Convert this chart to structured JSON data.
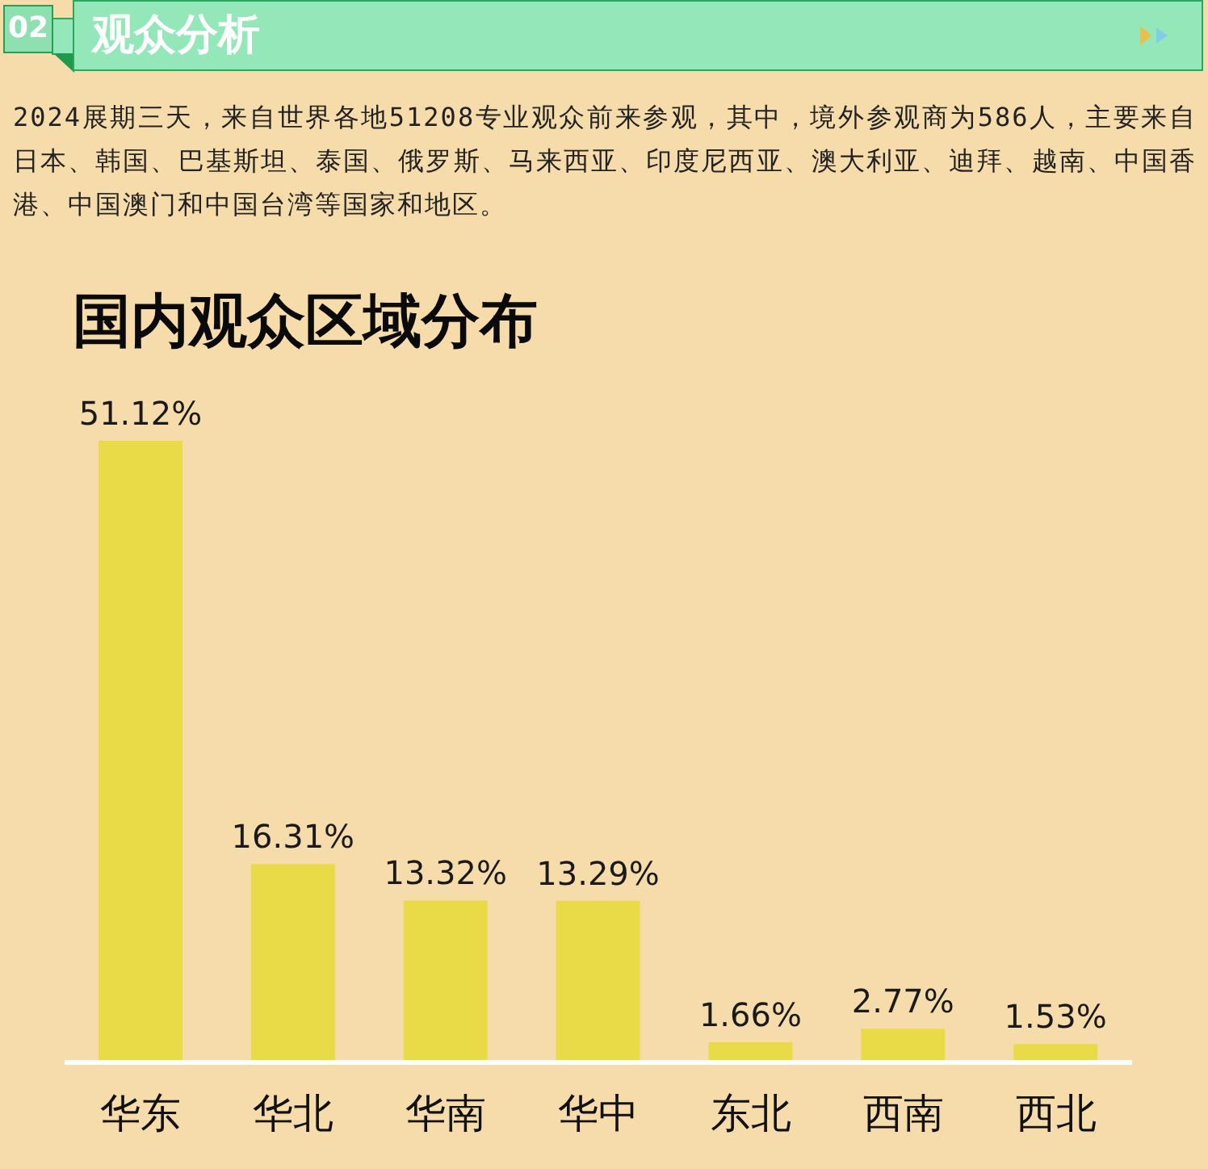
{
  "chart_data": {
    "type": "bar",
    "title": "国内观众区域分布",
    "categories": [
      "华东",
      "华北",
      "华南",
      "华中",
      "东北",
      "西南",
      "西北"
    ],
    "values": [
      51.12,
      16.31,
      13.32,
      13.29,
      1.66,
      2.77,
      1.53
    ],
    "value_labels": [
      "51.12%",
      "16.31%",
      "13.32%",
      "13.29%",
      "1.66%",
      "2.77%",
      "1.53%"
    ],
    "color": "#e9db48",
    "annotations": [
      "02",
      "观众分析",
      "2024展期三天，来自世界各地51208专业观众前来参观，其中，境外参观商为586人，主要来自日本、韩国、巴基斯坦、泰国、俄罗斯、马来西亚、印度尼西亚、澳大利亚、迪拜、越南、中国香港、中国澳门和中国台湾等国家和地区。"
    ]
  }
}
